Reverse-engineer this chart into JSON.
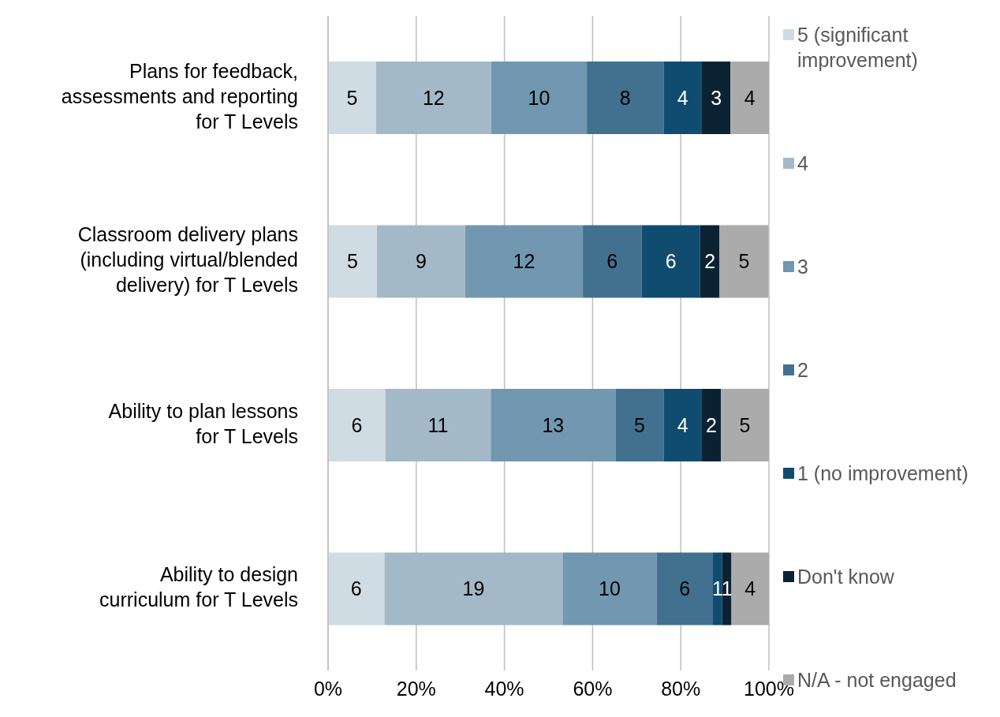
{
  "chart_data": {
    "type": "bar",
    "orientation": "horizontal",
    "stacked": true,
    "categories": [
      "Plans for feedback, assessments and reporting for T Levels",
      "Classroom delivery plans (including virtual/blended delivery) for T Levels",
      "Ability to plan lessons for T Levels",
      "Ability to design curriculum for T Levels"
    ],
    "series": [
      {
        "name": "5 (significant improvement)",
        "color": "#d0dce3",
        "values": [
          10.9,
          11.1,
          13.0,
          12.8
        ]
      },
      {
        "name": "4",
        "color": "#a3b9c8",
        "values": [
          26.1,
          20.0,
          23.9,
          40.4
        ]
      },
      {
        "name": "3",
        "color": "#7297b0",
        "values": [
          21.7,
          26.7,
          28.3,
          21.3
        ]
      },
      {
        "name": "2",
        "color": "#41718f",
        "values": [
          17.4,
          13.3,
          10.9,
          12.8
        ]
      },
      {
        "name": "1 (no improvement)",
        "color": "#0f4c70",
        "values": [
          8.7,
          13.3,
          8.7,
          2.1
        ]
      },
      {
        "name": "Don't know",
        "color": "#0b2233",
        "values": [
          6.5,
          4.4,
          4.3,
          2.1
        ]
      },
      {
        "name": "N/A - not engaged",
        "color": "#ababab",
        "values": [
          8.7,
          11.1,
          10.9,
          8.5
        ]
      }
    ],
    "annotations": [
      "5",
      "12",
      "10",
      "8",
      "4",
      "3",
      "4",
      "5",
      "9",
      "12",
      "6",
      "6",
      "2",
      "5",
      "6",
      "11",
      "13",
      "5",
      "4",
      "2",
      "5",
      "6",
      "19",
      "10",
      "6",
      "1",
      "1",
      "4"
    ],
    "xlim": [
      0,
      100
    ],
    "xticks": [
      {
        "value": 0,
        "label": "0%"
      },
      {
        "value": 20,
        "label": "20%"
      },
      {
        "value": 40,
        "label": "40%"
      },
      {
        "value": 60,
        "label": "60%"
      },
      {
        "value": 80,
        "label": "80%"
      },
      {
        "value": 100,
        "label": "100%"
      }
    ],
    "grid": "x",
    "legend": "right"
  }
}
